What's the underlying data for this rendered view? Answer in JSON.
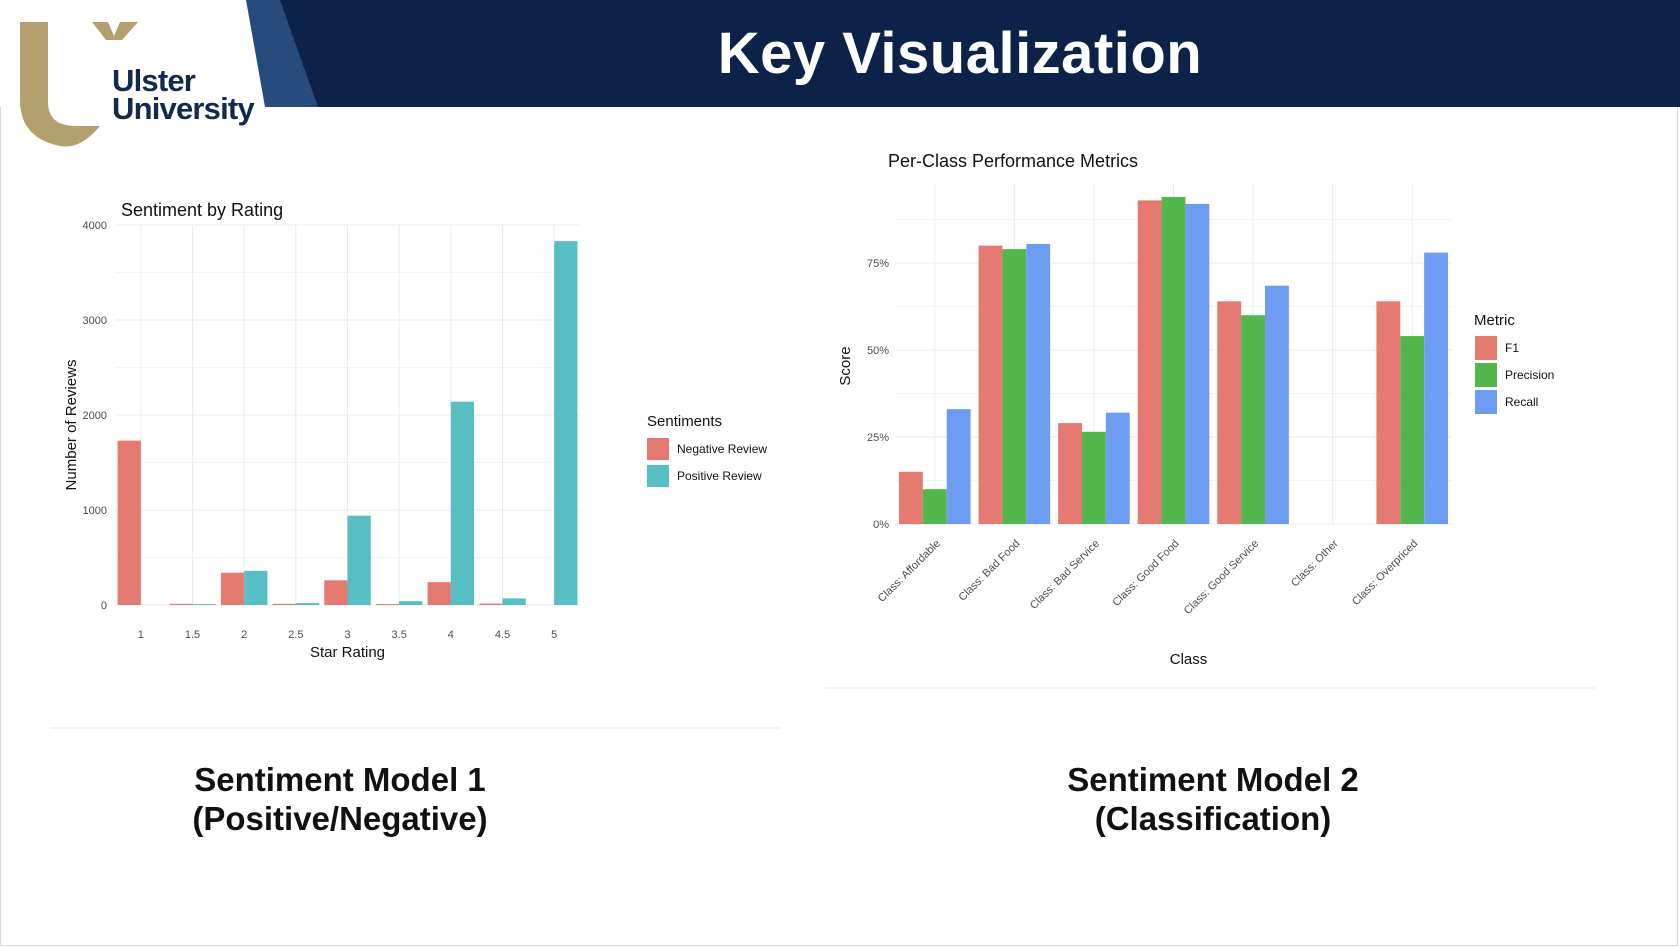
{
  "slide": {
    "title": "Key Visualization",
    "logo_text_line1": "Ulster",
    "logo_text_line2": "University"
  },
  "colors": {
    "header_navy": "#0c2248",
    "header_stripe": "#284b7d",
    "logo_gold": "#b49f6e",
    "negative": "#e57a72",
    "positive": "#57bfc4",
    "f1": "#e57a72",
    "precision": "#52b74d",
    "recall": "#6e9cf2"
  },
  "captions": {
    "left_line1": "Sentiment Model 1",
    "left_line2": "(Positive/Negative)",
    "right_line1": "Sentiment Model 2",
    "right_line2": "(Classification)"
  },
  "chart_data": [
    {
      "type": "bar",
      "title": "Sentiment by Rating",
      "xlabel": "Star Rating",
      "ylabel": "Number of Reviews",
      "categories": [
        "1",
        "1.5",
        "2",
        "2.5",
        "3",
        "3.5",
        "4",
        "4.5",
        "5"
      ],
      "yticks": [
        "0",
        "1000",
        "2000",
        "3000",
        "4000"
      ],
      "ylim": [
        0,
        4000
      ],
      "grid": true,
      "legend_title": "Sentiments",
      "legend_position": "right",
      "series": [
        {
          "name": "Negative Review",
          "values": [
            1730,
            12,
            340,
            12,
            260,
            10,
            240,
            15,
            null
          ]
        },
        {
          "name": "Positive Review",
          "values": [
            null,
            10,
            360,
            20,
            940,
            40,
            2140,
            70,
            3830
          ]
        }
      ]
    },
    {
      "type": "bar",
      "title": "Per-Class Performance Metrics",
      "xlabel": "Class",
      "ylabel": "Score",
      "categories": [
        "Class: Affordable",
        "Class: Bad Food",
        "Class: Bad Service",
        "Class: Good Food",
        "Class: Good Service",
        "Class: Other",
        "Class: Overpriced"
      ],
      "yticks": [
        "0%",
        "25%",
        "50%",
        "75%"
      ],
      "ylim": [
        0,
        1
      ],
      "grid": true,
      "legend_title": "Metric",
      "legend_position": "right",
      "series": [
        {
          "name": "F1",
          "values": [
            0.15,
            0.8,
            0.29,
            0.93,
            0.64,
            0,
            0.64
          ]
        },
        {
          "name": "Precision",
          "values": [
            0.1,
            0.79,
            0.265,
            0.94,
            0.6,
            0,
            0.54
          ]
        },
        {
          "name": "Recall",
          "values": [
            0.33,
            0.805,
            0.32,
            0.92,
            0.685,
            0,
            0.78
          ]
        }
      ]
    }
  ]
}
